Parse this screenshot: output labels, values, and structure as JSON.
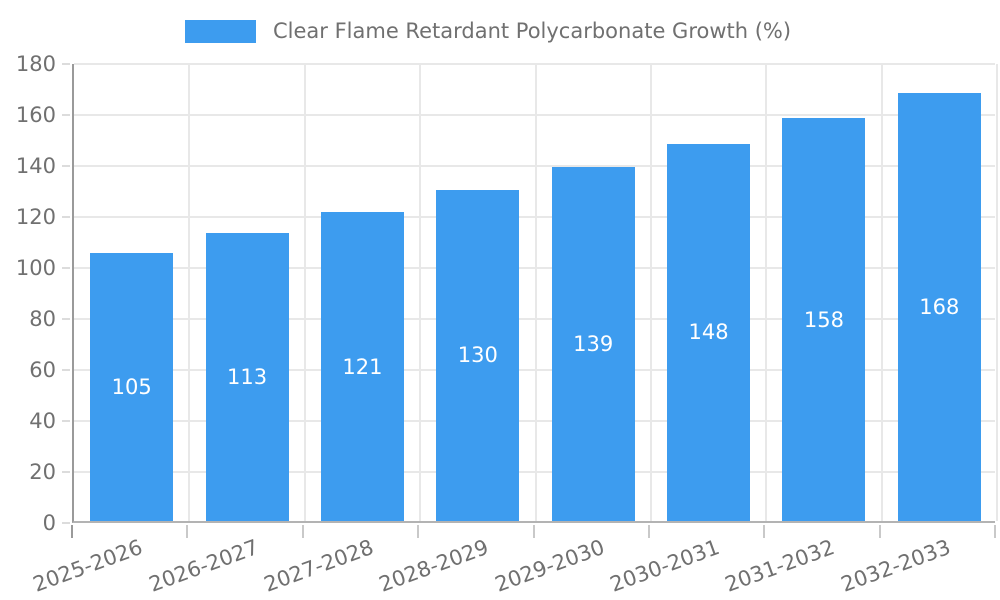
{
  "chart_data": {
    "type": "bar",
    "title": "Clear Flame Retardant Polycarbonate Growth (%)",
    "categories": [
      "2025-2026",
      "2026-2027",
      "2027-2028",
      "2028-2029",
      "2029-2030",
      "2030-2031",
      "2031-2032",
      "2032-2033"
    ],
    "values": [
      105,
      113,
      121,
      130,
      139,
      148,
      158,
      168
    ],
    "xlabel": "",
    "ylabel": "",
    "ylim": [
      0,
      180
    ],
    "ytick_step": 20,
    "grid": true,
    "legend_position": "top",
    "bar_color": "#3d9cef",
    "value_label_color": "#ffffff",
    "axis_text_color": "#707070",
    "gridline_color": "#e8e8e8",
    "yaxis_line_color": "#9a9a9a",
    "xaxis_line_color": "#b3b3b3",
    "ytick_color": "#dcdcdc",
    "xtick_color": "#c9c9c9"
  }
}
